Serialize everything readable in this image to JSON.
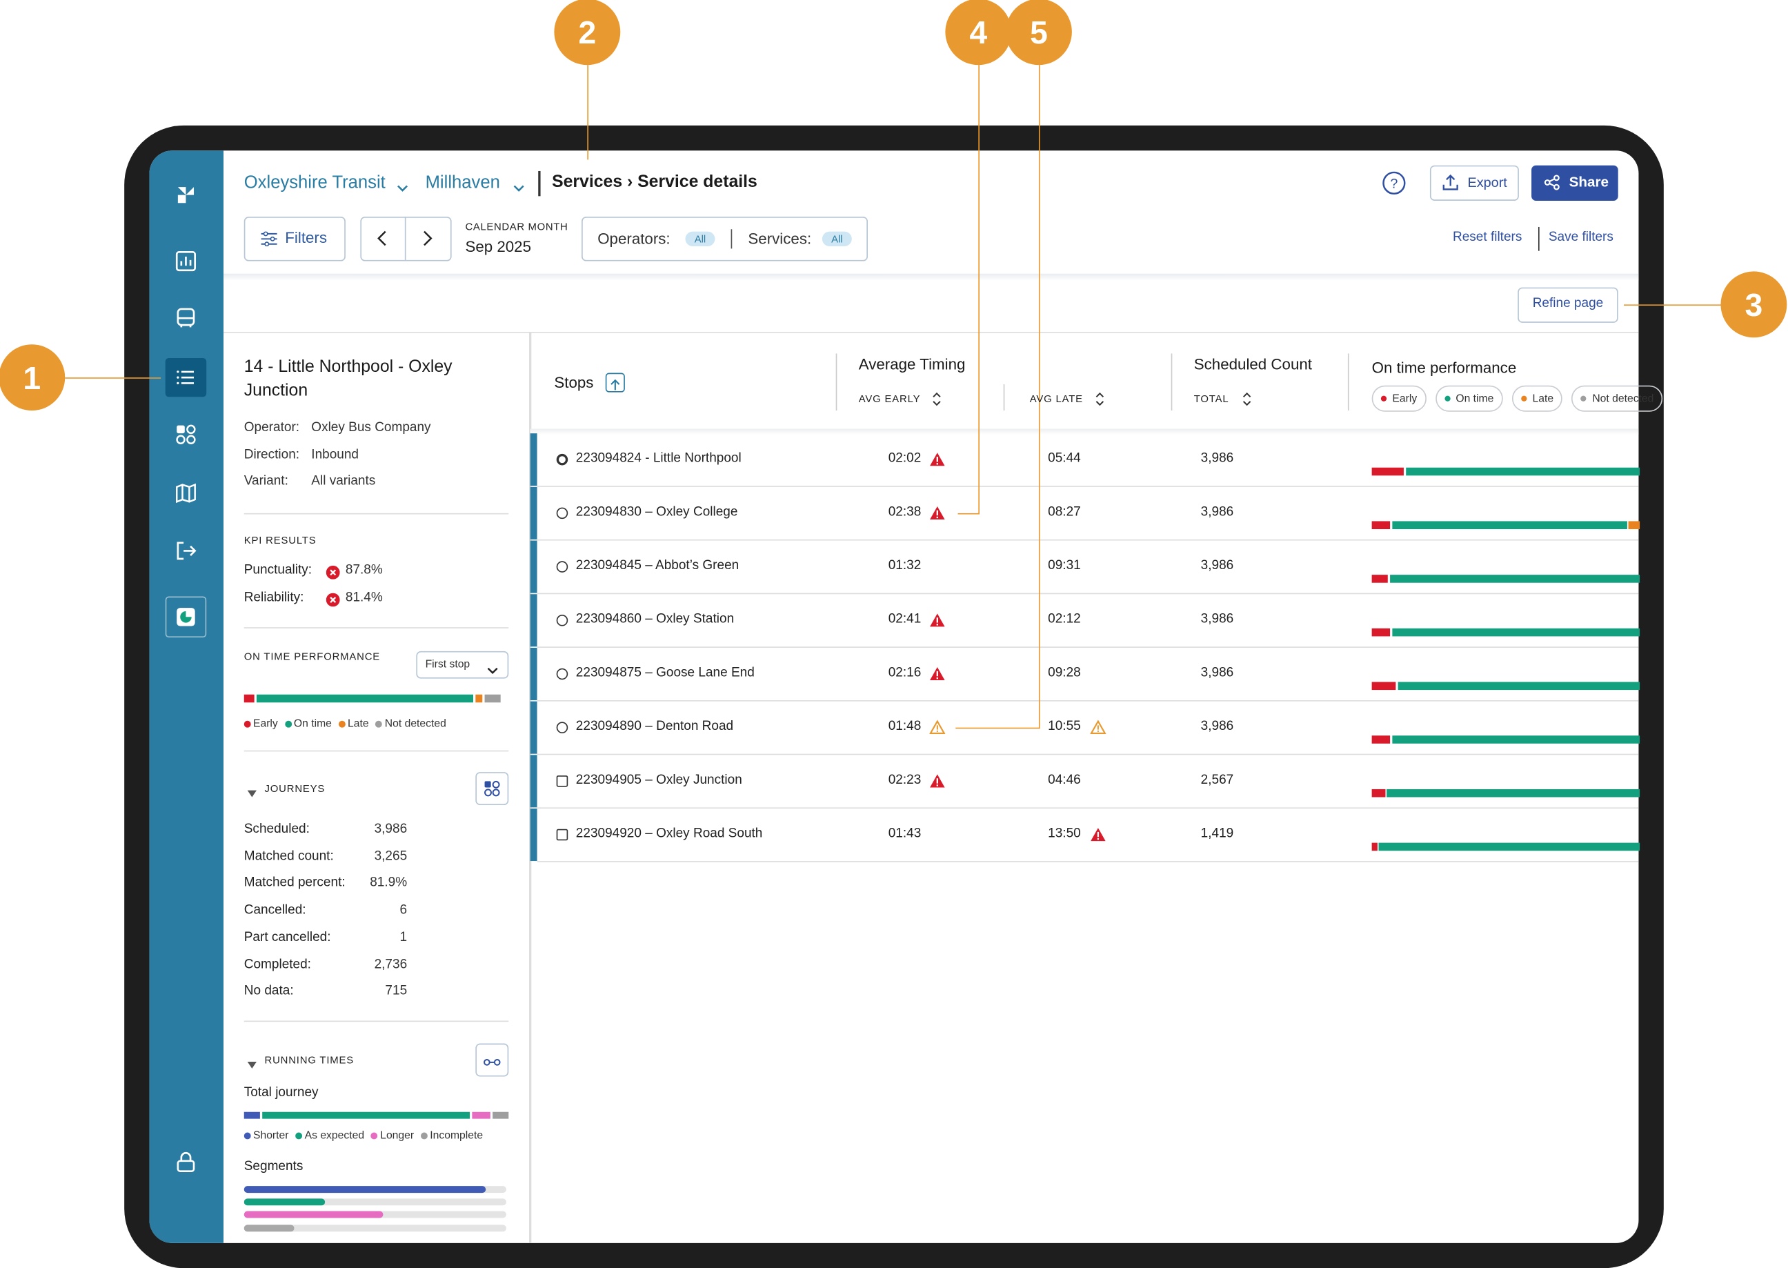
{
  "callouts": [
    "1",
    "2",
    "3",
    "4",
    "5"
  ],
  "header": {
    "org": "Oxleyshire Transit",
    "region": "Millhaven",
    "breadcrumb": "Services › Service details",
    "export": "Export",
    "share": "Share"
  },
  "filters": {
    "button": "Filters",
    "period_label": "CALENDAR MONTH",
    "period": "Sep 2025",
    "operators": "Operators:",
    "services": "Services:",
    "operators_value": "All",
    "services_value": "All",
    "reset": "Reset filters",
    "save": "Save filters",
    "refine": "Refine page"
  },
  "service": {
    "title": "14 - Little Northpool - Oxley Junction",
    "details": [
      [
        "Operator:",
        "Oxley Bus Company"
      ],
      [
        "Direction:",
        "Inbound"
      ],
      [
        "Variant:",
        "All variants"
      ]
    ]
  },
  "kpi": {
    "heading": "KPI RESULTS",
    "items": [
      [
        "Punctuality:",
        "87.8%"
      ],
      [
        "Reliability:",
        "81.4%"
      ]
    ]
  },
  "otp": {
    "heading": "ON TIME PERFORMANCE",
    "select": "First stop",
    "segments": [
      {
        "name": "Early",
        "color": "#d91a2a",
        "value": 4
      },
      {
        "name": "On time",
        "color": "#13a07f",
        "value": 84
      },
      {
        "name": "Late",
        "color": "#e8831f",
        "value": 3
      },
      {
        "name": "Not detected",
        "color": "#9e9e9e",
        "value": 6
      }
    ]
  },
  "journeys": {
    "heading": "JOURNEYS",
    "rows": [
      [
        "Scheduled:",
        "3,986"
      ],
      [
        "Matched count:",
        "3,265"
      ],
      [
        "Matched percent:",
        "81.9%"
      ],
      [
        "Cancelled:",
        "6"
      ],
      [
        "Part cancelled:",
        "1"
      ],
      [
        "Completed:",
        "2,736"
      ],
      [
        "No data:",
        "715"
      ]
    ]
  },
  "running_times": {
    "heading": "RUNNING TIMES",
    "total_label": "Total journey",
    "segments": [
      {
        "name": "Shorter",
        "color": "#3f5bb5",
        "value": 6
      },
      {
        "name": "As expected",
        "color": "#13a07f",
        "value": 80
      },
      {
        "name": "Longer",
        "color": "#e66cc2",
        "value": 7
      },
      {
        "name": "Incomplete",
        "color": "#9e9e9e",
        "value": 6
      }
    ],
    "segments_label": "Segments",
    "segment_bars": [
      {
        "color": "#3f5bb5",
        "value": 92
      },
      {
        "color": "#13a07f",
        "value": 31
      },
      {
        "color": "#e66cc2",
        "value": 53
      },
      {
        "color": "#a8a8a8",
        "value": 19
      }
    ]
  },
  "table": {
    "columns": {
      "stops": "Stops",
      "avg_timing": "Average Timing",
      "avg_early": "AVG EARLY",
      "avg_late": "AVG LATE",
      "scheduled": "Scheduled Count",
      "total": "TOTAL",
      "otp": "On time performance"
    },
    "legend": [
      {
        "name": "Early",
        "color": "#d91a2a"
      },
      {
        "name": "On time",
        "color": "#13a07f"
      },
      {
        "name": "Late",
        "color": "#e8831f"
      },
      {
        "name": "Not detected",
        "color": "#9e9e9e"
      }
    ],
    "rows": [
      {
        "stop": "223094824 - Little Northpool",
        "marker": "circle-bold",
        "early": "02:02",
        "early_alert": "high",
        "late": "05:44",
        "count": "3,986",
        "otp": [
          12,
          88,
          0
        ]
      },
      {
        "stop": "223094830 – Oxley College",
        "marker": "circle",
        "early": "02:38",
        "early_alert": "high",
        "late": "08:27",
        "count": "3,986",
        "otp": [
          7,
          88,
          4
        ]
      },
      {
        "stop": "223094845 – Abbot’s Green",
        "marker": "circle",
        "early": "01:32",
        "late": "09:31",
        "count": "3,986",
        "otp": [
          6,
          94,
          0
        ]
      },
      {
        "stop": "223094860 – Oxley Station",
        "marker": "circle",
        "early": "02:41",
        "early_alert": "high",
        "late": "02:12",
        "count": "3,986",
        "otp": [
          7,
          93,
          0
        ]
      },
      {
        "stop": "223094875 – Goose Lane End",
        "marker": "circle",
        "early": "02:16",
        "early_alert": "high",
        "late": "09:28",
        "count": "3,986",
        "otp": [
          9,
          91,
          0
        ]
      },
      {
        "stop": "223094890 – Denton Road",
        "marker": "circle",
        "early": "01:48",
        "early_alert": "medium",
        "late": "10:55",
        "late_alert": "medium",
        "count": "3,986",
        "otp": [
          7,
          93,
          0
        ]
      },
      {
        "stop": "223094905 – Oxley Junction",
        "marker": "square",
        "early": "02:23",
        "early_alert": "high",
        "late": "04:46",
        "count": "2,567",
        "otp": [
          5,
          95,
          0
        ]
      },
      {
        "stop": "223094920 – Oxley Road South",
        "marker": "square",
        "early": "01:43",
        "late": "13:50",
        "late_alert": "high",
        "count": "1,419",
        "otp": [
          2,
          98,
          0
        ]
      }
    ]
  }
}
